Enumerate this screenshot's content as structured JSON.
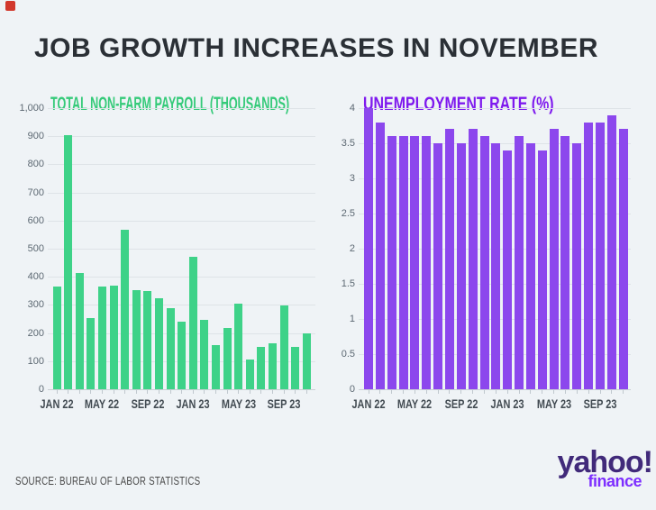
{
  "page": {
    "title": "JOB GROWTH INCREASES IN NOVEMBER",
    "title_color": "#2b3036",
    "background": "#eff3f6",
    "source": "SOURCE: BUREAU OF LABOR STATISTICS"
  },
  "marker": {
    "color": "#d2382c"
  },
  "logo": {
    "brand": "yahoo!",
    "sub": "finance",
    "brand_color": "#412a7a",
    "sub_color": "#7d2eff"
  },
  "chart_data": [
    {
      "type": "bar",
      "title": "TOTAL NON-FARM PAYROLL (THOUSANDS)",
      "title_color": "#35ca79",
      "bar_color": "#3ed288",
      "grid": true,
      "legend": "none",
      "ylim": [
        0,
        1000
      ],
      "categories": [
        "JAN 22",
        "FEB 22",
        "MAR 22",
        "APR 22",
        "MAY 22",
        "JUN 22",
        "JUL 22",
        "AUG 22",
        "SEP 22",
        "OCT 22",
        "NOV 22",
        "DEC 22",
        "JAN 23",
        "FEB 23",
        "MAR 23",
        "APR 23",
        "MAY 23",
        "JUN 23",
        "JUL 23",
        "AUG 23",
        "SEP 23",
        "OCT 23",
        "NOV 23"
      ],
      "values": [
        364,
        904,
        414,
        254,
        364,
        370,
        568,
        352,
        350,
        324,
        290,
        239,
        472,
        248,
        157,
        217,
        306,
        105,
        152,
        165,
        297,
        150,
        199
      ],
      "yticks": [
        {
          "value": 1000,
          "label": "1,000"
        },
        {
          "value": 900,
          "label": "900"
        },
        {
          "value": 800,
          "label": "800"
        },
        {
          "value": 700,
          "label": "700"
        },
        {
          "value": 600,
          "label": "600"
        },
        {
          "value": 500,
          "label": "500"
        },
        {
          "value": 400,
          "label": "400"
        },
        {
          "value": 300,
          "label": "300"
        },
        {
          "value": 200,
          "label": "200"
        },
        {
          "value": 100,
          "label": "100"
        },
        {
          "value": 0,
          "label": "0"
        }
      ],
      "xticks": [
        {
          "index": 0,
          "label": "JAN 22"
        },
        {
          "index": 4,
          "label": "MAY 22"
        },
        {
          "index": 8,
          "label": "SEP 22"
        },
        {
          "index": 12,
          "label": "JAN 23"
        },
        {
          "index": 16,
          "label": "MAY 23"
        },
        {
          "index": 20,
          "label": "SEP 23"
        }
      ]
    },
    {
      "type": "bar",
      "title": "UNEMPLOYMENT RATE (%)",
      "title_color": "#7e19ee",
      "bar_color": "#8c47ed",
      "grid": true,
      "legend": "none",
      "ylim": [
        0,
        4
      ],
      "categories": [
        "JAN 22",
        "FEB 22",
        "MAR 22",
        "APR 22",
        "MAY 22",
        "JUN 22",
        "JUL 22",
        "AUG 22",
        "SEP 22",
        "OCT 22",
        "NOV 22",
        "DEC 22",
        "JAN 23",
        "FEB 23",
        "MAR 23",
        "APR 23",
        "MAY 23",
        "JUN 23",
        "JUL 23",
        "AUG 23",
        "SEP 23",
        "OCT 23",
        "NOV 23"
      ],
      "values": [
        4.0,
        3.8,
        3.6,
        3.6,
        3.6,
        3.6,
        3.5,
        3.7,
        3.5,
        3.7,
        3.6,
        3.5,
        3.4,
        3.6,
        3.5,
        3.4,
        3.7,
        3.6,
        3.5,
        3.8,
        3.8,
        3.9,
        3.7
      ],
      "yticks": [
        {
          "value": 4,
          "label": "4"
        },
        {
          "value": 3.5,
          "label": "3.5"
        },
        {
          "value": 3,
          "label": "3"
        },
        {
          "value": 2.5,
          "label": "2.5"
        },
        {
          "value": 2,
          "label": "2"
        },
        {
          "value": 1.5,
          "label": "1.5"
        },
        {
          "value": 1,
          "label": "1"
        },
        {
          "value": 0.5,
          "label": "0.5"
        },
        {
          "value": 0,
          "label": "0"
        }
      ],
      "xticks": [
        {
          "index": 0,
          "label": "JAN 22"
        },
        {
          "index": 4,
          "label": "MAY 22"
        },
        {
          "index": 8,
          "label": "SEP 22"
        },
        {
          "index": 12,
          "label": "JAN 23"
        },
        {
          "index": 16,
          "label": "MAY 23"
        },
        {
          "index": 20,
          "label": "SEP 23"
        }
      ]
    }
  ]
}
